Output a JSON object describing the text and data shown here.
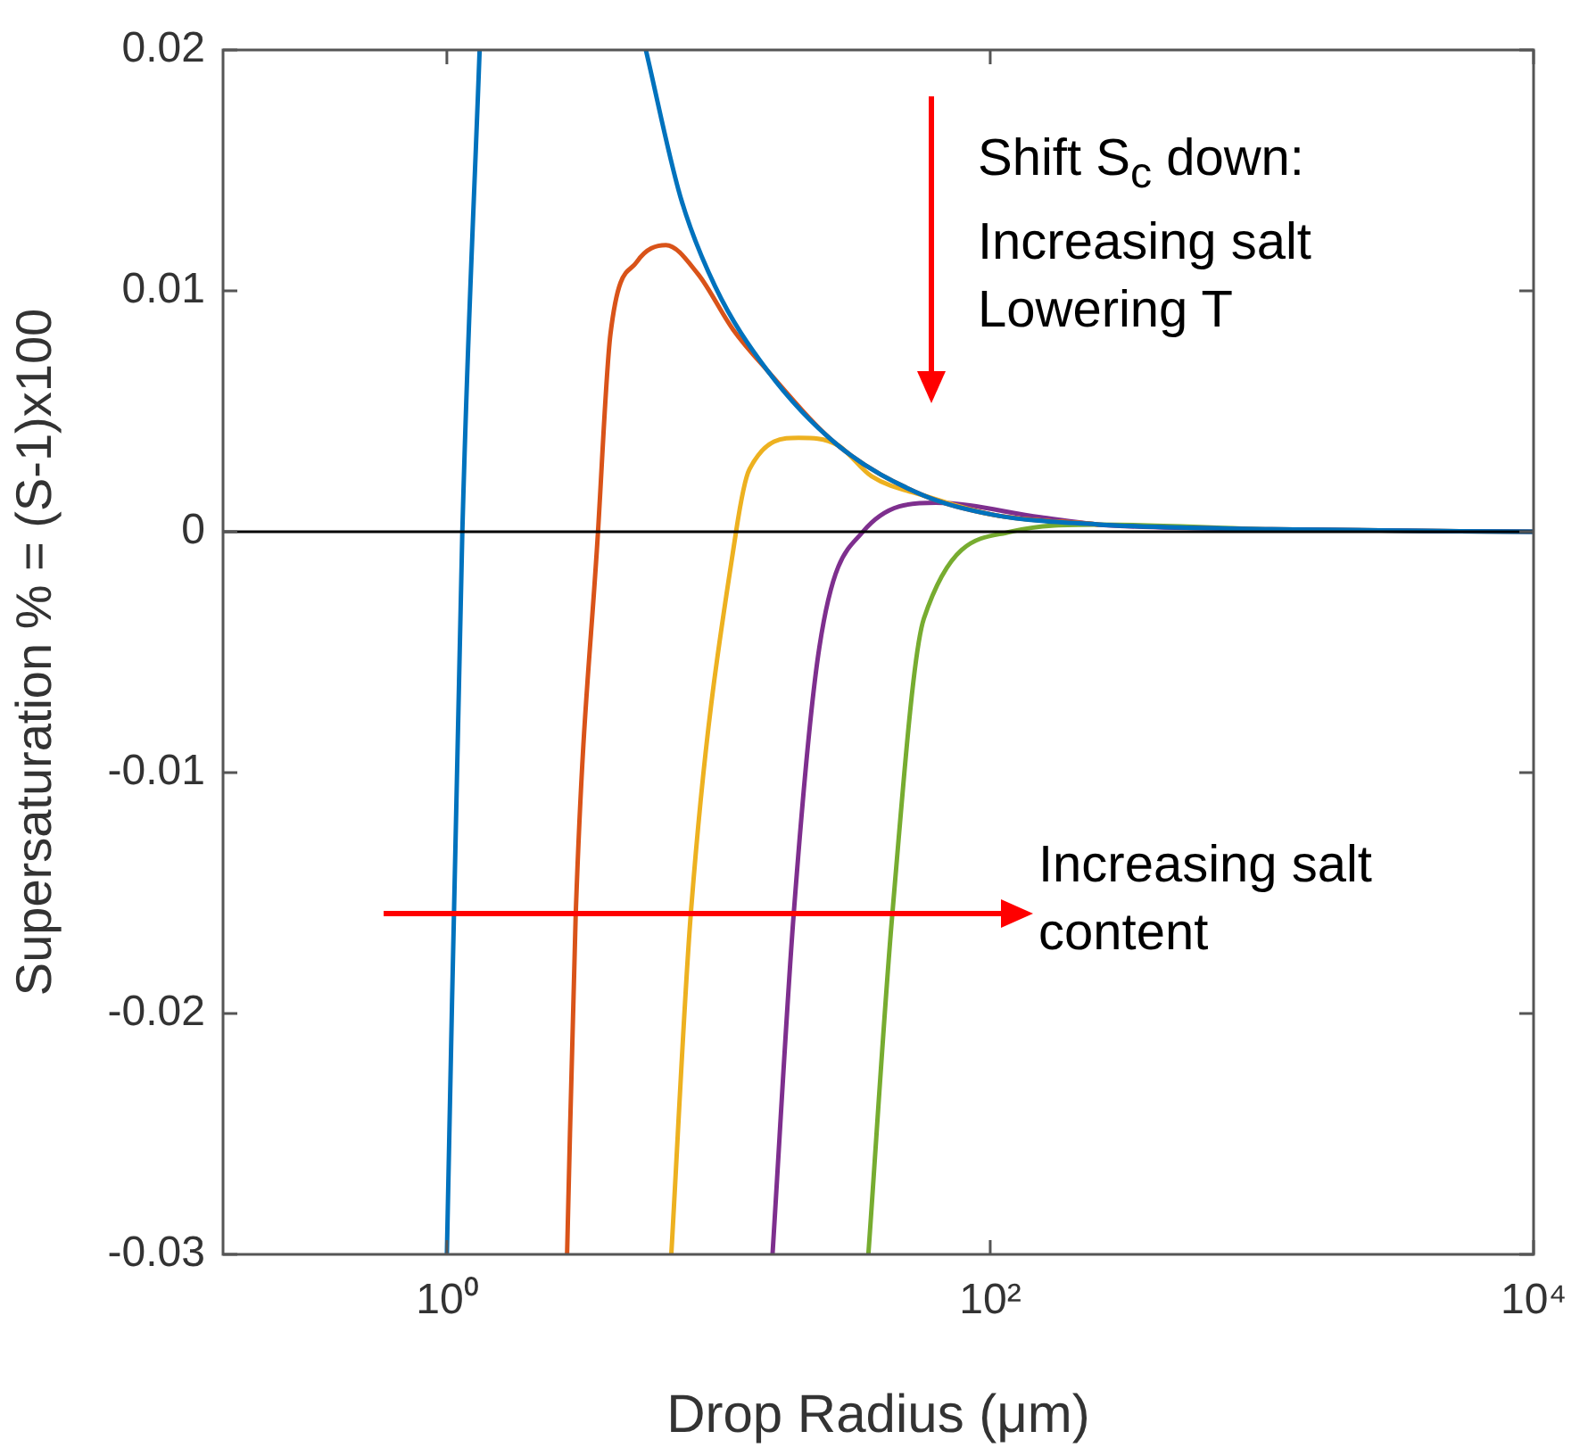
{
  "chart_data": {
    "type": "line",
    "xlabel": "Drop Radius (μm)",
    "ylabel": "Supersaturation % = (S-1)x100",
    "log": "x",
    "xlim": [
      0.15,
      10000
    ],
    "xticks": [
      {
        "value": 1,
        "label": "10⁰"
      },
      {
        "value": 100,
        "label": "10²"
      },
      {
        "value": 10000,
        "label": "10⁴"
      }
    ],
    "ylim": [
      -0.03,
      0.02
    ],
    "yticks": [
      -0.03,
      -0.02,
      -0.01,
      0,
      0.01,
      0.02
    ],
    "grid": false,
    "legend": false,
    "ref_lines": [
      {
        "axis": "y",
        "value": 0,
        "color": "#000000"
      }
    ],
    "annotations": [
      "Shift S$_{c}$ down:\nIncreasing salt\nLowering T",
      "Increasing salt\ncontent"
    ],
    "series": [
      {
        "color": "#0072bd",
        "x": [
          1.0,
          1.14,
          1.32,
          2.5,
          5.4,
          7.24,
          9.7,
          15.1,
          27.4,
          57,
          103,
          250,
          1090,
          10000
        ],
        "values": [
          -0.03,
          0,
          0.02,
          null,
          0.02,
          0.0139,
          0.0102,
          0.0067,
          0.0036,
          0.0015,
          0.0007,
          0.0003,
          0.0001,
          0
        ]
      },
      {
        "color": "#d95319",
        "x": [
          2.77,
          2.98,
          3.6,
          4.0,
          5.0,
          6.4,
          8.4,
          11.3,
          15.1,
          27.4,
          57,
          103,
          250
        ],
        "values": [
          -0.03,
          -0.0159,
          0,
          0.0082,
          0.0112,
          0.0119,
          0.0107,
          0.0084,
          0.0067,
          0.0036,
          0.0015,
          0.0007,
          0.0003
        ]
      },
      {
        "color": "#edb120",
        "x": [
          6.7,
          7.9,
          11.6,
          13.0,
          19.7,
          27.4,
          36.6,
          57,
          103,
          250
        ],
        "values": [
          -0.03,
          -0.0159,
          0,
          0.0026,
          0.0039,
          0.0036,
          0.0023,
          0.0015,
          0.0007,
          0.0003
        ]
      },
      {
        "color": "#7e2f8e",
        "x": [
          15.8,
          18.9,
          23.5,
          34,
          63,
          153,
          250,
          1090,
          10000
        ],
        "values": [
          -0.03,
          -0.0159,
          -0.0048,
          0,
          0.0012,
          0.0006,
          0.0003,
          0.0001,
          0
        ]
      },
      {
        "color": "#77ac30",
        "x": [
          35.6,
          43.6,
          57,
          119,
          250,
          1090,
          10000
        ],
        "values": [
          -0.03,
          -0.0159,
          -0.0036,
          0,
          0.0003,
          0.0001,
          0
        ]
      }
    ]
  }
}
